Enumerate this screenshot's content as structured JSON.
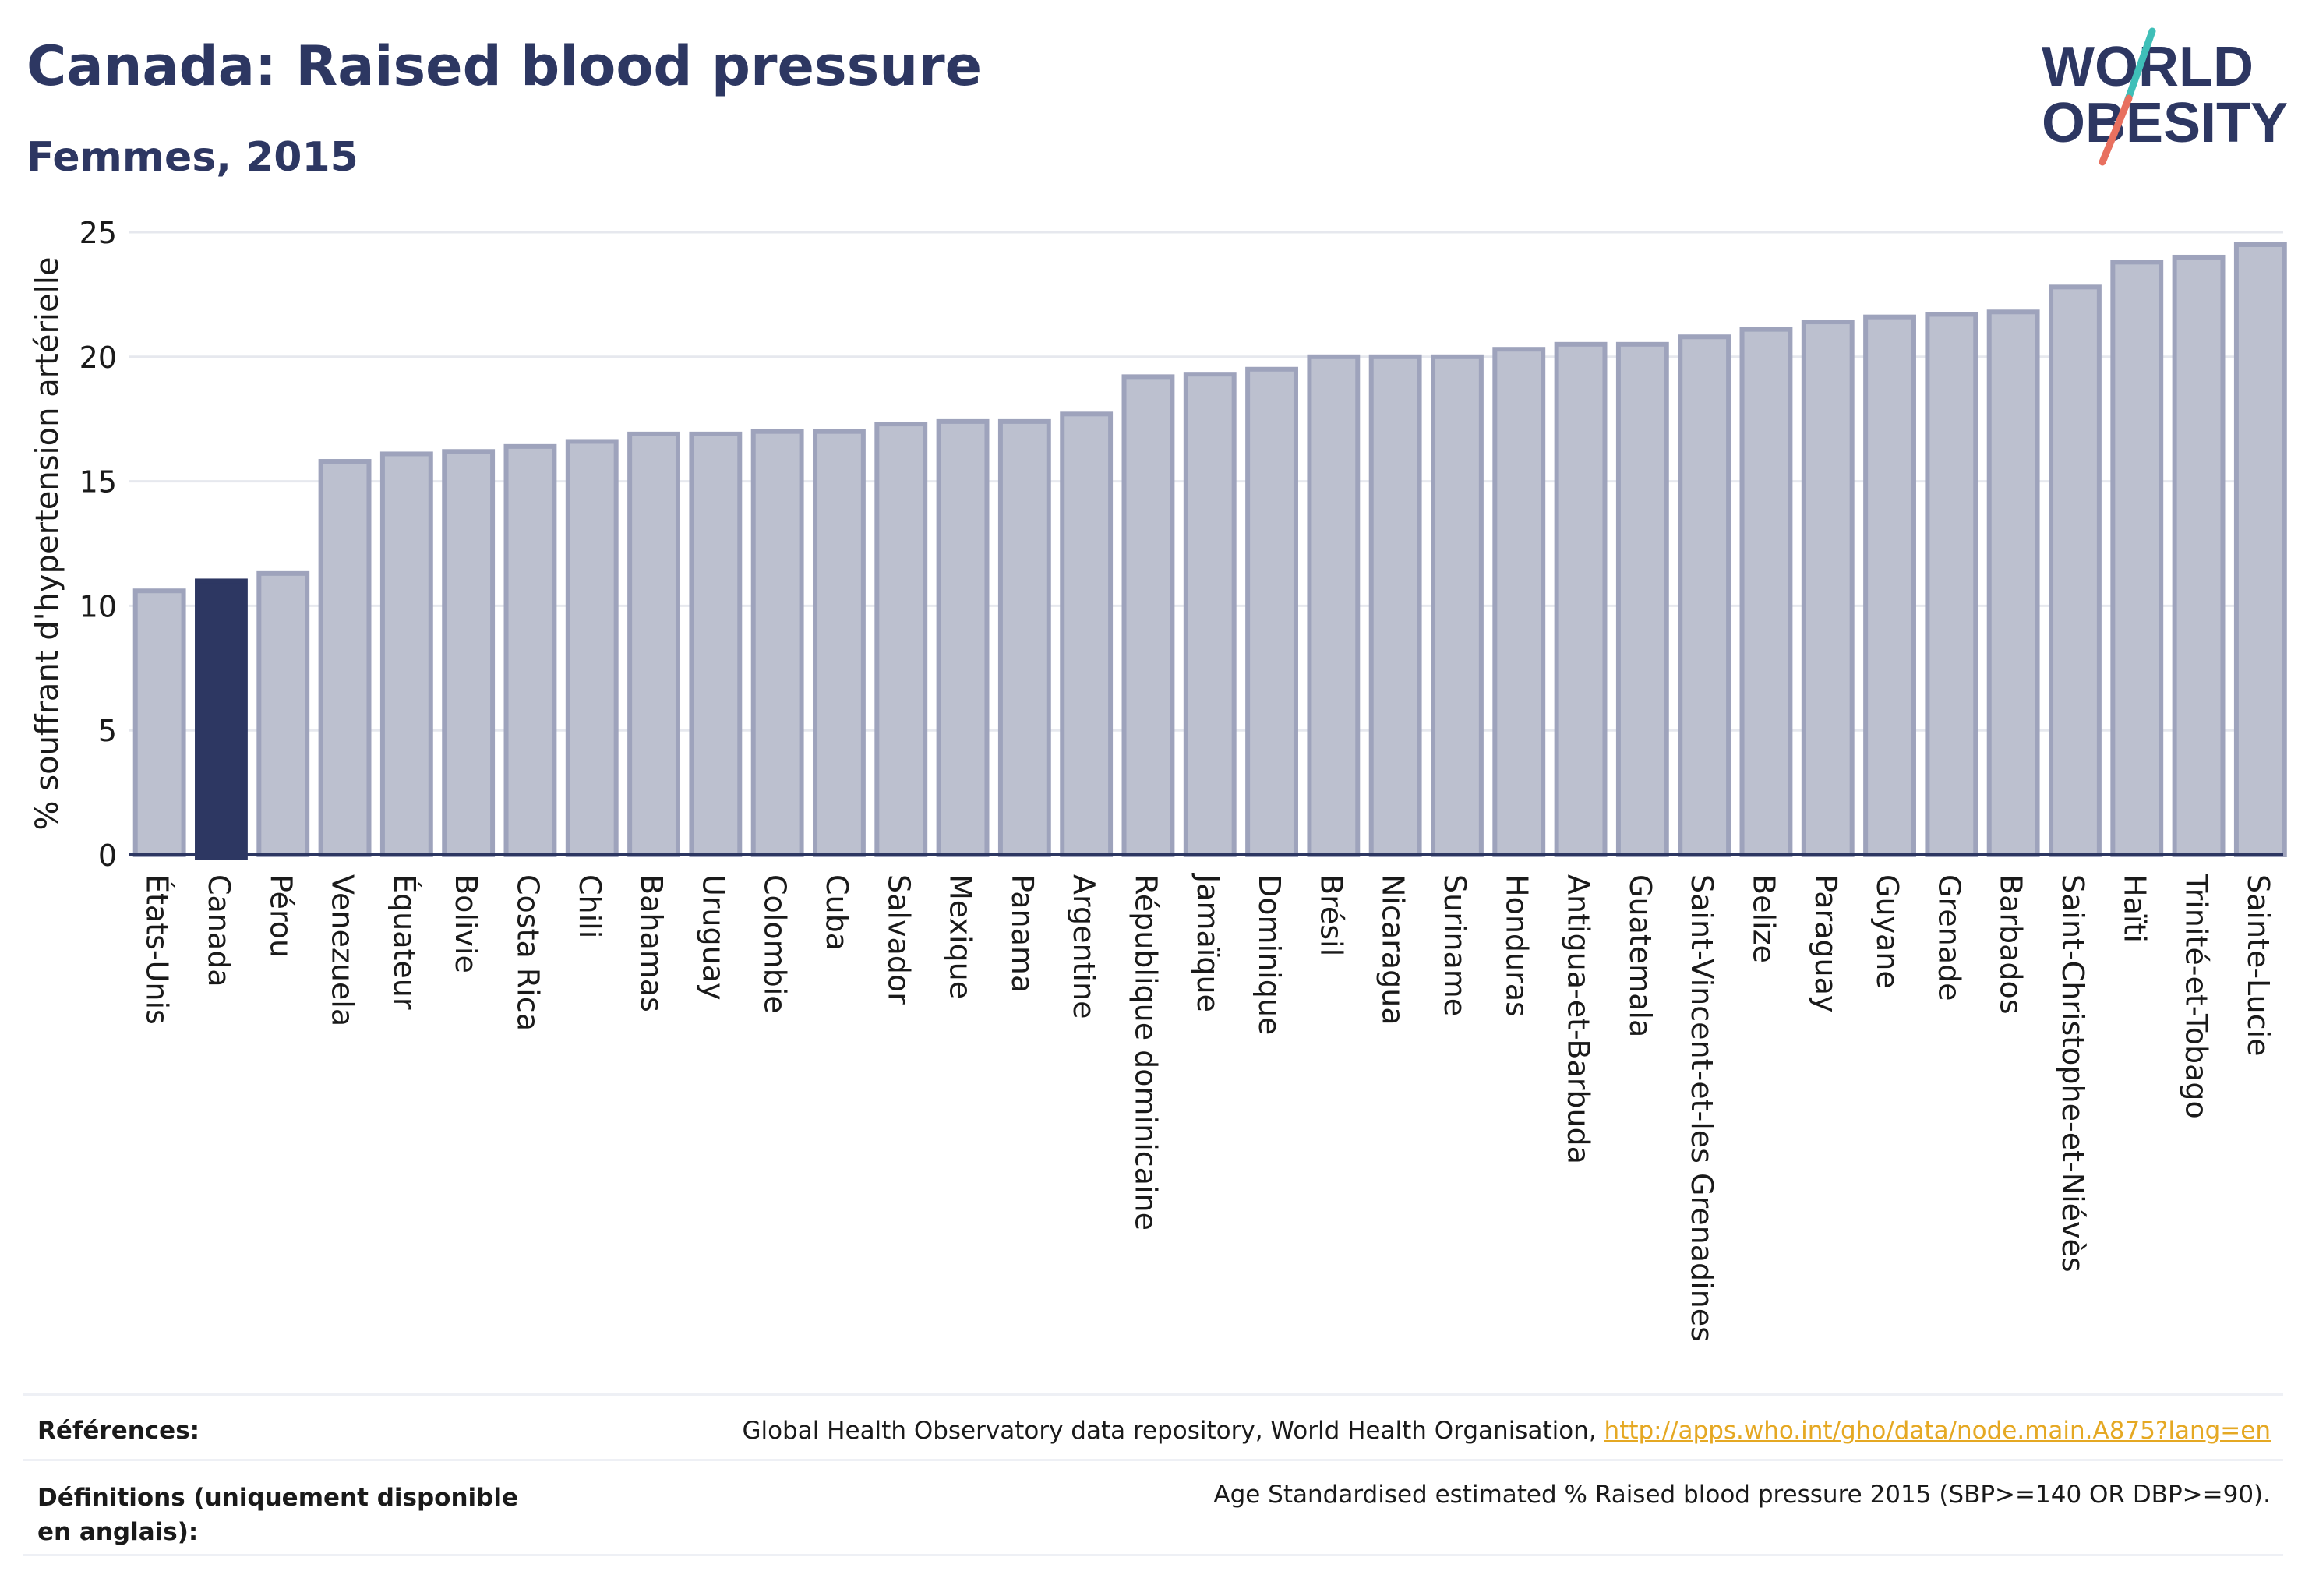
{
  "header": {
    "title": "Canada: Raised blood pressure",
    "subtitle": "Femmes, 2015"
  },
  "logo": {
    "line1": "WORLD",
    "line2": "OBESITY",
    "colors": {
      "text": "#2d3762",
      "slash_teal": "#3fbfb8",
      "slash_coral": "#e8705f"
    }
  },
  "chart_data": {
    "type": "bar",
    "ylabel": "% souffrant d'hypertension artérielle",
    "ylim": [
      0,
      25
    ],
    "yticks": [
      0,
      5,
      10,
      15,
      20,
      25
    ],
    "grid": true,
    "highlight": "Canada",
    "colors": {
      "bar": "#bcc0cf",
      "bar_edge": "#9ea3bc",
      "highlight": "#2d3762"
    },
    "categories": [
      "États-Unis",
      "Canada",
      "Pérou",
      "Venezuela",
      "Équateur",
      "Bolivie",
      "Costa Rica",
      "Chili",
      "Bahamas",
      "Uruguay",
      "Colombie",
      "Cuba",
      "Salvador",
      "Mexique",
      "Panama",
      "Argentine",
      "République dominicaine",
      "Jamaïque",
      "Dominique",
      "Brésil",
      "Nicaragua",
      "Suriname",
      "Honduras",
      "Antigua-et-Barbuda",
      "Guatemala",
      "Saint-Vincent-et-les Grenadines",
      "Belize",
      "Paraguay",
      "Guyane",
      "Grenade",
      "Barbados",
      "Saint-Christophe-et-Niévès",
      "Haïti",
      "Trinité-et-Tobago",
      "Sainte-Lucie"
    ],
    "values": [
      10.6,
      11.0,
      11.3,
      15.8,
      16.1,
      16.2,
      16.4,
      16.6,
      16.9,
      16.9,
      17.0,
      17.0,
      17.3,
      17.4,
      17.4,
      17.7,
      19.2,
      19.3,
      19.5,
      20.0,
      20.0,
      20.0,
      20.3,
      20.5,
      20.5,
      20.8,
      21.1,
      21.4,
      21.6,
      21.7,
      21.8,
      22.8,
      23.8,
      24.0,
      24.5
    ]
  },
  "footer": {
    "references_label": "Références:",
    "references_text": "Global Health Observatory data repository, World Health Organisation, ",
    "references_link": "http://apps.who.int/gho/data/node.main.A875?lang=en",
    "definitions_label": "Définitions (uniquement disponible en anglais):",
    "definitions_text": "Age Standardised estimated % Raised blood pressure 2015 (SBP>=140 OR DBP>=90)."
  }
}
